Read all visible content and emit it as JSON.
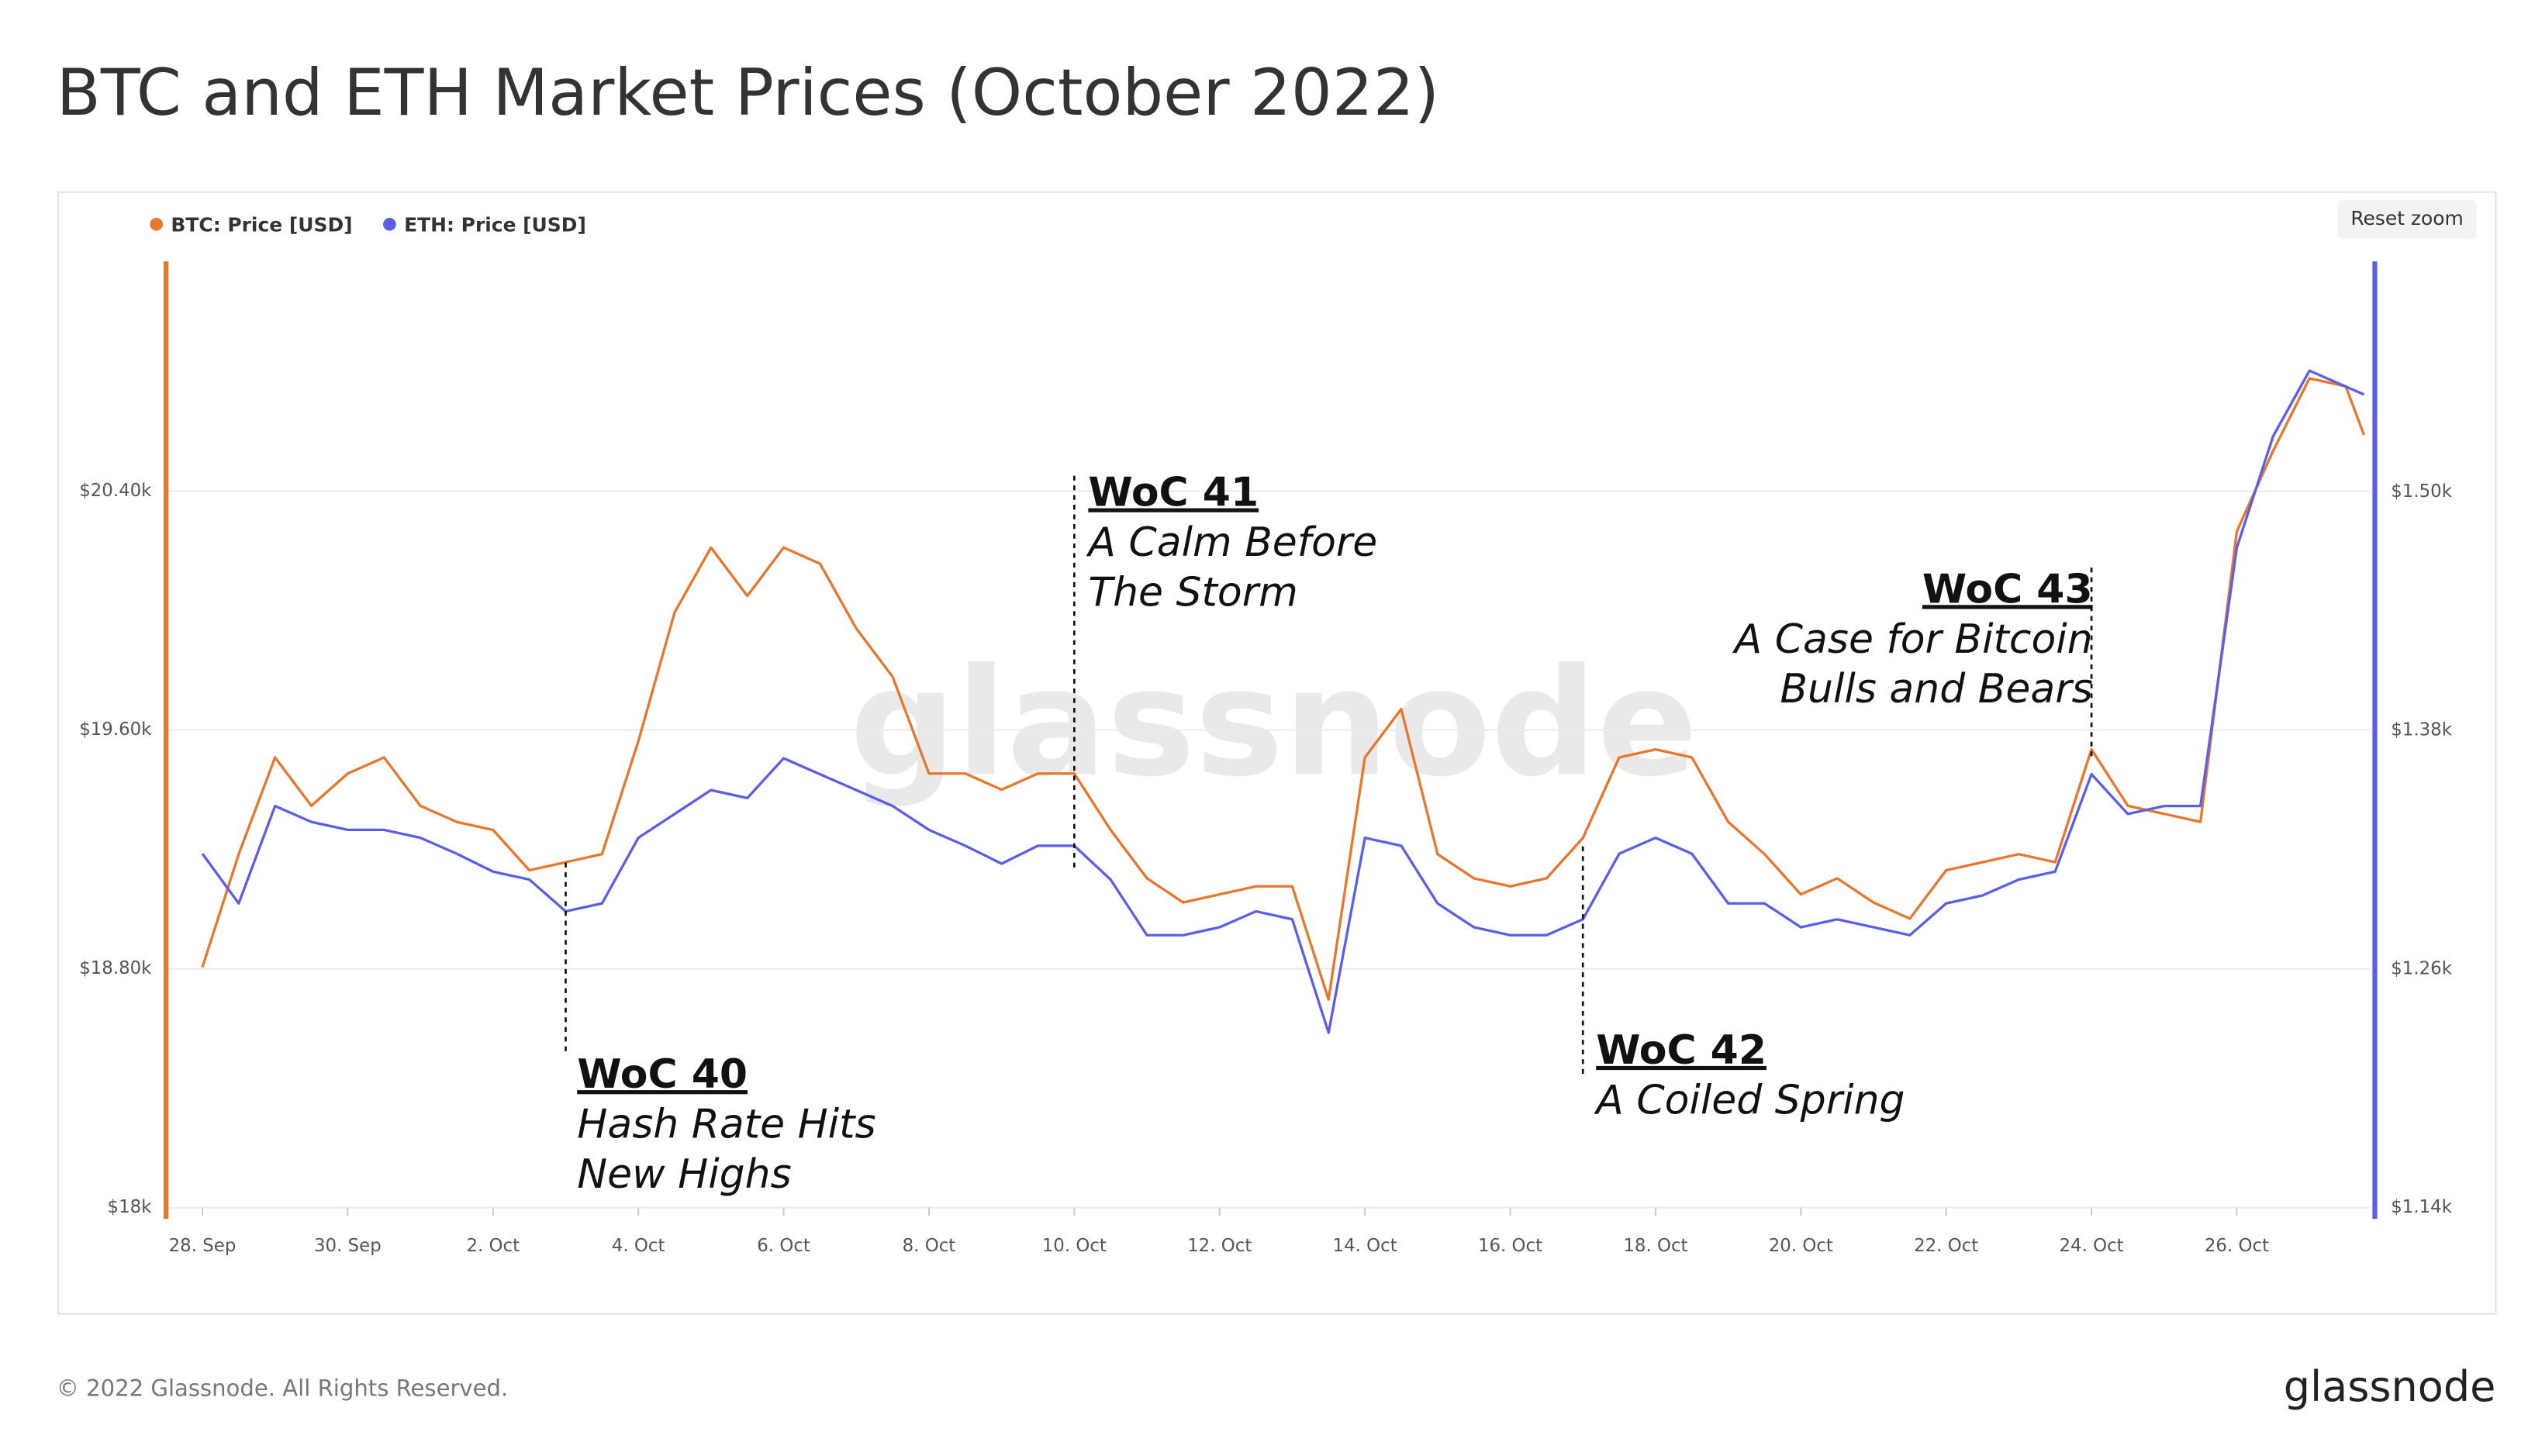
{
  "chart_data": {
    "type": "line",
    "title": "BTC and ETH Market Prices (October 2022)",
    "x": [
      "2022-09-28T00:00",
      "2022-09-28T12:00",
      "2022-09-29T00:00",
      "2022-09-29T12:00",
      "2022-09-30T00:00",
      "2022-09-30T12:00",
      "2022-10-01T00:00",
      "2022-10-01T12:00",
      "2022-10-02T00:00",
      "2022-10-02T12:00",
      "2022-10-03T00:00",
      "2022-10-03T12:00",
      "2022-10-04T00:00",
      "2022-10-04T12:00",
      "2022-10-05T00:00",
      "2022-10-05T12:00",
      "2022-10-06T00:00",
      "2022-10-06T12:00",
      "2022-10-07T00:00",
      "2022-10-07T12:00",
      "2022-10-08T00:00",
      "2022-10-08T12:00",
      "2022-10-09T00:00",
      "2022-10-09T12:00",
      "2022-10-10T00:00",
      "2022-10-10T12:00",
      "2022-10-11T00:00",
      "2022-10-11T12:00",
      "2022-10-12T00:00",
      "2022-10-12T12:00",
      "2022-10-13T00:00",
      "2022-10-13T12:00",
      "2022-10-14T00:00",
      "2022-10-14T12:00",
      "2022-10-15T00:00",
      "2022-10-15T12:00",
      "2022-10-16T00:00",
      "2022-10-16T12:00",
      "2022-10-17T00:00",
      "2022-10-17T12:00",
      "2022-10-18T00:00",
      "2022-10-18T12:00",
      "2022-10-19T00:00",
      "2022-10-19T12:00",
      "2022-10-20T00:00",
      "2022-10-20T12:00",
      "2022-10-21T00:00",
      "2022-10-21T12:00",
      "2022-10-22T00:00",
      "2022-10-22T12:00",
      "2022-10-23T00:00",
      "2022-10-23T12:00",
      "2022-10-24T00:00",
      "2022-10-24T12:00",
      "2022-10-25T00:00",
      "2022-10-25T12:00",
      "2022-10-26T00:00",
      "2022-10-26T12:00",
      "2022-10-27T00:00",
      "2022-10-27T12:00",
      "2022-10-27T18:00"
    ],
    "series": [
      {
        "name": "BTC: Price [USD]",
        "color": "#e8772e",
        "values": [
          18805,
          19184,
          19508,
          19346,
          19454,
          19508,
          19346,
          19292,
          19265,
          19130,
          19157,
          19184,
          19562,
          19994,
          20211,
          20049,
          20211,
          20157,
          19940,
          19778,
          19454,
          19454,
          19400,
          19454,
          19454,
          19265,
          19103,
          19022,
          19049,
          19076,
          19076,
          18697,
          19508,
          19670,
          19184,
          19103,
          19076,
          19103,
          19238,
          19508,
          19535,
          19508,
          19292,
          19184,
          19049,
          19103,
          19022,
          18968,
          19130,
          19157,
          19184,
          19157,
          19535,
          19346,
          19319,
          19292,
          20265,
          20535,
          20778,
          20751,
          20589
        ]
      },
      {
        "name": "ETH: Price [USD]",
        "color": "#5b5fe6",
        "axis": "y2",
        "values": [
          1318,
          1293,
          1342,
          1334,
          1330,
          1330,
          1326,
          1318,
          1309,
          1305,
          1289,
          1293,
          1326,
          1338,
          1350,
          1346,
          1366,
          1358,
          1350,
          1342,
          1330,
          1322,
          1313,
          1322,
          1322,
          1305,
          1277,
          1277,
          1281,
          1289,
          1285,
          1228,
          1326,
          1322,
          1293,
          1281,
          1277,
          1277,
          1285,
          1318,
          1326,
          1318,
          1293,
          1293,
          1281,
          1285,
          1281,
          1277,
          1293,
          1297,
          1305,
          1309,
          1358,
          1338,
          1342,
          1342,
          1472,
          1528,
          1561,
          1553,
          1549
        ]
      }
    ],
    "xlim": [
      "2022-09-27T12:00",
      "2022-10-27T20:00"
    ],
    "xticks": [
      {
        "value": "2022-09-28T00:00",
        "label": "28. Sep"
      },
      {
        "value": "2022-09-30T00:00",
        "label": "30. Sep"
      },
      {
        "value": "2022-10-02T00:00",
        "label": "2. Oct"
      },
      {
        "value": "2022-10-04T00:00",
        "label": "4. Oct"
      },
      {
        "value": "2022-10-06T00:00",
        "label": "6. Oct"
      },
      {
        "value": "2022-10-08T00:00",
        "label": "8. Oct"
      },
      {
        "value": "2022-10-10T00:00",
        "label": "10. Oct"
      },
      {
        "value": "2022-10-12T00:00",
        "label": "12. Oct"
      },
      {
        "value": "2022-10-14T00:00",
        "label": "14. Oct"
      },
      {
        "value": "2022-10-16T00:00",
        "label": "16. Oct"
      },
      {
        "value": "2022-10-18T00:00",
        "label": "18. Oct"
      },
      {
        "value": "2022-10-20T00:00",
        "label": "20. Oct"
      },
      {
        "value": "2022-10-22T00:00",
        "label": "22. Oct"
      },
      {
        "value": "2022-10-24T00:00",
        "label": "24. Oct"
      },
      {
        "value": "2022-10-26T00:00",
        "label": "26. Oct"
      }
    ],
    "ylim": [
      18000,
      21170
    ],
    "yticks": [
      {
        "value": 18000,
        "label": "$18k"
      },
      {
        "value": 18800,
        "label": "$18.80k"
      },
      {
        "value": 19600,
        "label": "$19.60k"
      },
      {
        "value": 20400,
        "label": "$20.40k"
      }
    ],
    "y2lim": [
      1140,
      1616
    ],
    "y2ticks": [
      {
        "value": 1140,
        "label": "$1.14k"
      },
      {
        "value": 1260,
        "label": "$1.26k"
      },
      {
        "value": 1380,
        "label": "$1.38k"
      },
      {
        "value": 1500,
        "label": "$1.50k"
      }
    ],
    "grid": true,
    "legend": "top-left",
    "annotations": [
      {
        "x": "2022-10-03T00:00",
        "title": "WoC 40",
        "lines": [
          "Hash Rate Hits",
          "New Highs"
        ]
      },
      {
        "x": "2022-10-10T00:00",
        "title": "WoC 41",
        "lines": [
          "A Calm Before",
          "The Storm"
        ]
      },
      {
        "x": "2022-10-17T00:00",
        "title": "WoC 42",
        "lines": [
          "A Coiled Spring"
        ]
      },
      {
        "x": "2022-10-24T00:00",
        "title": "WoC 43",
        "lines": [
          "A Case for Bitcoin",
          "Bulls and Bears"
        ]
      }
    ]
  },
  "reset_zoom": "Reset zoom",
  "watermark": "glassnode",
  "footer": {
    "copyright": "© 2022 Glassnode. All Rights Reserved.",
    "logo": "glassnode"
  }
}
